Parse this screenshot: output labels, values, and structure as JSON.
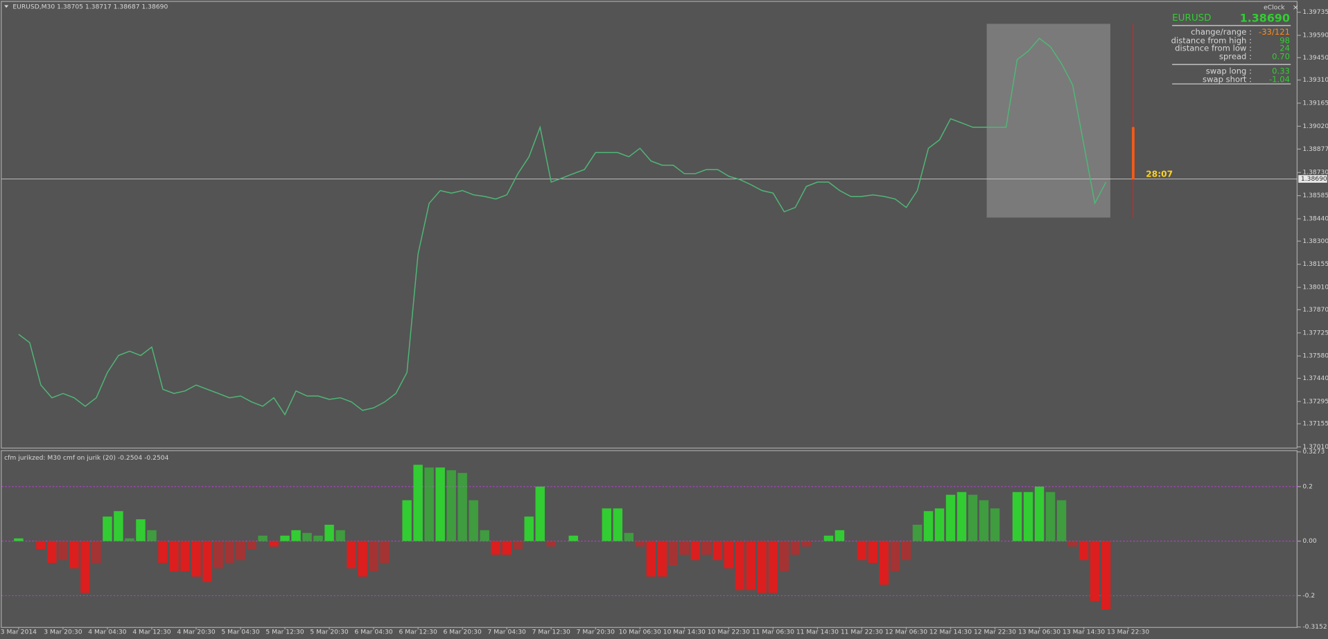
{
  "header": "EURUSD,M30  1.38705 1.38717 1.38687 1.38690",
  "indicator_header": "cfm jurikzed: M30   cmf on jurik (20) -0.2504 -0.2504",
  "timer": "28:07",
  "info_panel": {
    "title": "eClock",
    "symbol": "EURUSD",
    "price": "1.38690",
    "rows": [
      {
        "label": "change/range :",
        "value": "-33/121",
        "color": "#ff8c1a"
      },
      {
        "label": "distance from high :",
        "value": "98",
        "color": "#32cd32"
      },
      {
        "label": "distance from low :",
        "value": "24",
        "color": "#32cd32"
      },
      {
        "label": "spread :",
        "value": "0.70",
        "color": "#32cd32"
      },
      {
        "label": "swap long :",
        "value": "0.33",
        "color": "#32cd32"
      },
      {
        "label": "swap short :",
        "value": "-1.04",
        "color": "#32cd32"
      }
    ]
  },
  "chart_data": [
    {
      "type": "line",
      "color": "#4fb878",
      "ylim": [
        1.37,
        1.398
      ],
      "yticks": [
        {
          "value": 1.3701,
          "label": "1.37010"
        },
        {
          "value": 1.37155,
          "label": "1.37155"
        },
        {
          "value": 1.37295,
          "label": "1.37295"
        },
        {
          "value": 1.3744,
          "label": "1.37440"
        },
        {
          "value": 1.3758,
          "label": "1.37580"
        },
        {
          "value": 1.37725,
          "label": "1.37725"
        },
        {
          "value": 1.3787,
          "label": "1.37870"
        },
        {
          "value": 1.3801,
          "label": "1.38010"
        },
        {
          "value": 1.38155,
          "label": "1.38155"
        },
        {
          "value": 1.383,
          "label": "1.38300"
        },
        {
          "value": 1.3844,
          "label": "1.38440"
        },
        {
          "value": 1.38585,
          "label": "1.38585"
        },
        {
          "value": 1.3873,
          "label": "1.38730"
        },
        {
          "value": 1.38877,
          "label": "1.38877"
        },
        {
          "value": 1.3902,
          "label": "1.39020"
        },
        {
          "value": 1.39165,
          "label": "1.39165"
        },
        {
          "value": 1.3931,
          "label": "1.39310"
        },
        {
          "value": 1.3945,
          "label": "1.39450"
        },
        {
          "value": 1.3959,
          "label": "1.39590"
        },
        {
          "value": 1.39735,
          "label": "1.39735"
        }
      ],
      "last_price": {
        "value": 1.3869,
        "label": "1.38690"
      },
      "values": [
        1.37716,
        1.37663,
        1.37398,
        1.37318,
        1.37345,
        1.37318,
        1.37265,
        1.37318,
        1.37477,
        1.37583,
        1.3761,
        1.37583,
        1.37636,
        1.37371,
        1.37345,
        1.37361,
        1.37398,
        1.37371,
        1.37345,
        1.37318,
        1.37329,
        1.37292,
        1.37265,
        1.37318,
        1.37212,
        1.37361,
        1.37329,
        1.37329,
        1.37308,
        1.37318,
        1.37292,
        1.37239,
        1.37255,
        1.37292,
        1.37345,
        1.37477,
        1.38219,
        1.38537,
        1.38617,
        1.38601,
        1.38617,
        1.3859,
        1.3858,
        1.38564,
        1.3859,
        1.38723,
        1.38829,
        1.39014,
        1.3867,
        1.38696,
        1.38723,
        1.38749,
        1.38855,
        1.38855,
        1.38855,
        1.38829,
        1.38882,
        1.38802,
        1.38776,
        1.38776,
        1.38723,
        1.38723,
        1.38749,
        1.38749,
        1.38707,
        1.38686,
        1.38654,
        1.38617,
        1.38601,
        1.38484,
        1.38511,
        1.38643,
        1.3867,
        1.3867,
        1.38617,
        1.3858,
        1.3858,
        1.3859,
        1.3858,
        1.38564,
        1.38511,
        1.38617,
        1.38882,
        1.38935,
        1.39067,
        1.39041,
        1.39014,
        1.39014,
        1.39014,
        1.39014,
        1.39438,
        1.39491,
        1.39571,
        1.39518,
        1.39412,
        1.39279,
        1.38908,
        1.38537,
        1.3867,
        null,
        null
      ]
    },
    {
      "type": "bar",
      "up_color": "#32cd32",
      "down_color": "#dc1e1e",
      "grid": true,
      "ylim": [
        -0.3152,
        0.3273
      ],
      "yticks": [
        -0.3152,
        -0.2,
        {
          "value": 0,
          "label": "0.00"
        },
        0.2,
        0.3273
      ],
      "categories": [
        "3 Mar 2014",
        null,
        null,
        null,
        "3 Mar 20:30",
        null,
        null,
        null,
        "4 Mar 04:30",
        null,
        null,
        null,
        "4 Mar 12:30",
        null,
        null,
        null,
        "4 Mar 20:30",
        null,
        null,
        null,
        "5 Mar 04:30",
        null,
        null,
        null,
        "5 Mar 12:30",
        null,
        null,
        null,
        "5 Mar 20:30",
        null,
        null,
        null,
        "6 Mar 04:30",
        null,
        null,
        null,
        "6 Mar 12:30",
        null,
        null,
        null,
        "6 Mar 20:30",
        null,
        null,
        null,
        "7 Mar 04:30",
        null,
        null,
        null,
        "7 Mar 12:30",
        null,
        null,
        null,
        "7 Mar 20:30",
        null,
        null,
        null,
        "10 Mar 06:30",
        null,
        null,
        null,
        "10 Mar 14:30",
        null,
        null,
        null,
        "10 Mar 22:30",
        null,
        null,
        null,
        "11 Mar 06:30",
        null,
        null,
        null,
        "11 Mar 14:30",
        null,
        null,
        null,
        "11 Mar 22:30",
        null,
        null,
        null,
        "12 Mar 06:30",
        null,
        null,
        null,
        "12 Mar 14:30",
        null,
        null,
        null,
        "12 Mar 22:30",
        null,
        null,
        null,
        "13 Mar 06:30",
        null,
        null,
        null,
        "13 Mar 14:30",
        null,
        null,
        null,
        "13 Mar 22:30"
      ],
      "values": [
        0.01,
        0,
        -0.03,
        -0.08,
        -0.07,
        -0.1,
        -0.19,
        -0.08,
        0.09,
        0.11,
        0.01,
        0.08,
        0.04,
        -0.08,
        -0.11,
        -0.11,
        -0.13,
        -0.15,
        -0.1,
        -0.08,
        -0.07,
        -0.03,
        0.02,
        -0.02,
        0.02,
        0.04,
        0.03,
        0.02,
        0.06,
        0.04,
        -0.1,
        -0.13,
        -0.11,
        -0.08,
        0,
        0.15,
        0.28,
        0.27,
        0.27,
        0.26,
        0.25,
        0.15,
        0.04,
        -0.05,
        -0.05,
        -0.03,
        0.09,
        0.2,
        -0.02,
        0,
        0.02,
        0,
        0,
        0.12,
        0.12,
        0.03,
        -0.02,
        -0.13,
        -0.13,
        -0.09,
        -0.05,
        -0.07,
        -0.05,
        -0.07,
        -0.1,
        -0.18,
        -0.18,
        -0.19,
        -0.19,
        -0.11,
        -0.05,
        -0.02,
        0,
        0.02,
        0.04,
        0,
        -0.07,
        -0.08,
        -0.16,
        -0.11,
        -0.07,
        0.06,
        0.11,
        0.12,
        0.17,
        0.18,
        0.17,
        0.15,
        0.12,
        0,
        0.18,
        0.18,
        0.2,
        0.18,
        0.15,
        -0.02,
        -0.07,
        -0.22,
        -0.25,
        null,
        null
      ]
    }
  ]
}
